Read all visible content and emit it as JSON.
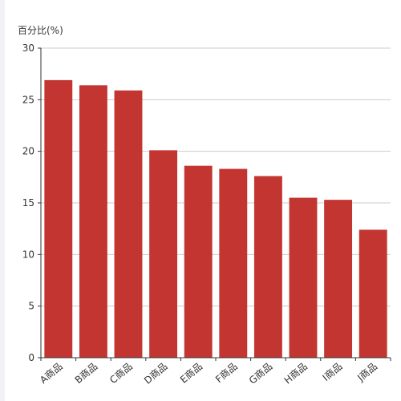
{
  "chart_data": {
    "type": "bar",
    "title": "",
    "xlabel": "",
    "ylabel": "百分比(%)",
    "categories": [
      "A商品",
      "B商品",
      "C商品",
      "D商品",
      "E商品",
      "F商品",
      "G商品",
      "H商品",
      "I商品",
      "J商品"
    ],
    "series": [
      {
        "values": [
          26.9,
          26.4,
          25.9,
          20.1,
          18.6,
          18.3,
          17.6,
          15.5,
          15.3,
          12.4
        ]
      }
    ],
    "ylim": [
      0,
      30
    ],
    "yticks": [
      0,
      5,
      10,
      15,
      20,
      25,
      30
    ],
    "grid": true,
    "legend": "none",
    "colors": {
      "bar": "#c23531",
      "grid": "#cccccc",
      "axis": "#333333"
    }
  }
}
